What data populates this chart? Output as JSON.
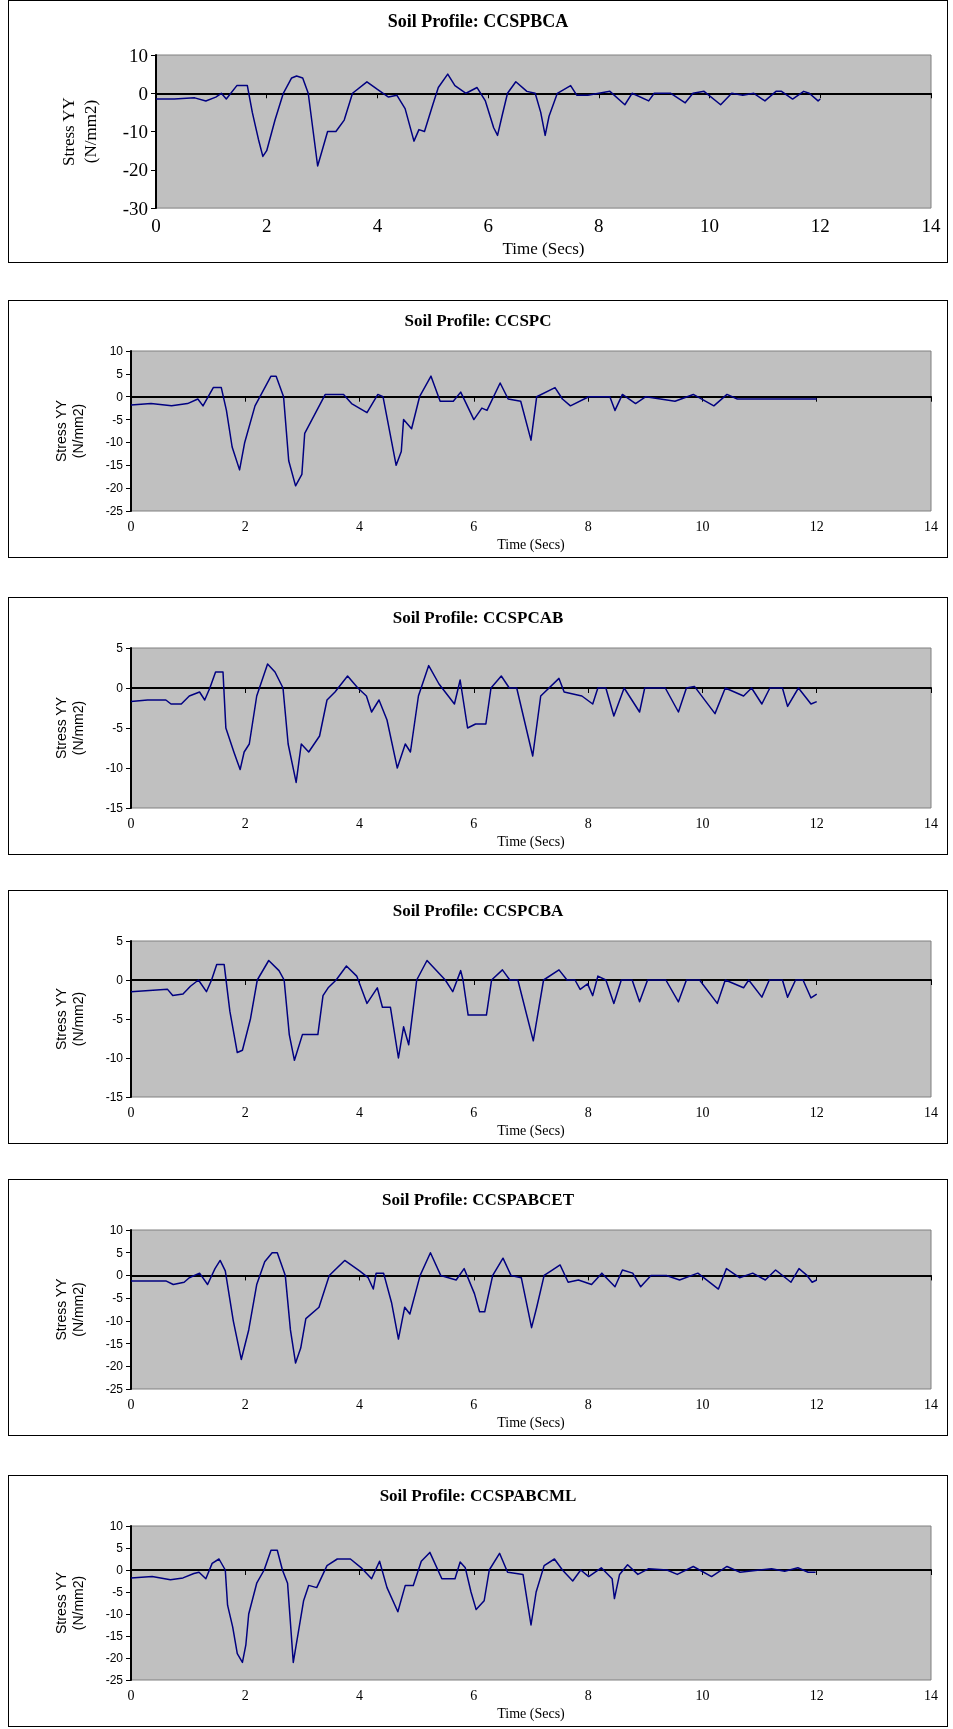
{
  "chart_data": [
    {
      "type": "line",
      "title": "Soil Profile: CCSPBCA",
      "xlabel": "Time (Secs)",
      "ylabel": "Stress YY\n(N/mm2)",
      "xlim": [
        0,
        14
      ],
      "xticks": [
        0,
        2,
        4,
        6,
        8,
        10,
        12,
        14
      ],
      "ylim": [
        -30,
        10
      ],
      "yticks": [
        -30,
        -20,
        -10,
        0,
        10
      ],
      "marker": "none",
      "x": [
        0,
        0.33,
        0.7,
        0.9,
        1.08,
        1.18,
        1.27,
        1.46,
        1.65,
        1.74,
        1.85,
        1.93,
        2.0,
        2.15,
        2.3,
        2.45,
        2.54,
        2.65,
        2.75,
        2.92,
        3.0,
        3.1,
        3.25,
        3.4,
        3.55,
        3.81,
        4.0,
        4.2,
        4.35,
        4.5,
        4.66,
        4.75,
        4.85,
        5.0,
        5.1,
        5.27,
        5.4,
        5.6,
        5.8,
        5.95,
        6.1,
        6.17,
        6.25,
        6.35,
        6.5,
        6.7,
        6.85,
        6.95,
        7.03,
        7.1,
        7.25,
        7.49,
        7.6,
        7.8,
        8.0,
        8.2,
        8.47,
        8.6,
        8.9,
        9.0,
        9.3,
        9.56,
        9.7,
        9.9,
        10.2,
        10.4,
        10.6,
        10.8,
        11.0,
        11.2,
        11.3,
        11.5,
        11.7,
        11.8,
        11.96,
        12.0
      ],
      "series": [
        {
          "color": "#000080",
          "values": [
            -1.5,
            -1.5,
            -1.2,
            -2,
            -1,
            0,
            -1.5,
            2,
            2,
            -5,
            -12,
            -16.5,
            -15,
            -7,
            0,
            4,
            4.5,
            4,
            0,
            -19,
            -15,
            -10,
            -10,
            -7,
            0,
            3,
            1,
            -1,
            -0.5,
            -4,
            -12.5,
            -9.5,
            -10,
            -3,
            1.5,
            5,
            2,
            0,
            1.5,
            -2,
            -9,
            -11,
            -6,
            0,
            3,
            0.5,
            0,
            -5,
            -11,
            -6,
            0,
            2,
            -0.5,
            -0.5,
            0,
            0.5,
            -3,
            0,
            -2,
            0,
            0,
            -2.5,
            0,
            0.5,
            -3,
            0,
            -0.5,
            0,
            -2,
            0.5,
            0.5,
            -1.5,
            0.5,
            0,
            -2,
            -1.5
          ]
        }
      ]
    },
    {
      "type": "line",
      "title": "Soil Profile: CCSPC",
      "xlabel": "Time (Secs)",
      "ylabel": "Stress YY\n(N/mm2)",
      "xlim": [
        0,
        14
      ],
      "xticks": [
        0,
        2,
        4,
        6,
        8,
        10,
        12,
        14
      ],
      "ylim": [
        -25,
        10
      ],
      "yticks": [
        -25,
        -20,
        -15,
        -10,
        -5,
        0,
        5,
        10
      ],
      "marker": "none",
      "x": [
        0,
        0.35,
        0.71,
        0.99,
        1.17,
        1.26,
        1.44,
        1.58,
        1.67,
        1.77,
        1.9,
        1.99,
        2.17,
        2.45,
        2.54,
        2.67,
        2.76,
        2.88,
        2.99,
        3.04,
        3.4,
        3.72,
        3.86,
        4.13,
        4.32,
        4.41,
        4.64,
        4.73,
        4.77,
        4.91,
        5.05,
        5.25,
        5.41,
        5.64,
        5.77,
        6.0,
        6.14,
        6.23,
        6.46,
        6.6,
        6.82,
        7.0,
        7.1,
        7.42,
        7.55,
        7.69,
        8.01,
        8.38,
        8.47,
        8.6,
        8.83,
        9.01,
        9.52,
        9.84,
        10.2,
        10.43,
        10.61,
        12.0
      ],
      "series": [
        {
          "color": "#000080",
          "values": [
            -1.8,
            -1.5,
            -2,
            -1.5,
            -0.5,
            -2,
            2,
            2,
            -3,
            -11,
            -16,
            -10,
            -2,
            4.5,
            4.5,
            0,
            -14,
            -19.5,
            -17,
            -8,
            0.5,
            0.5,
            -1.5,
            -3.5,
            0.5,
            0,
            -15,
            -12,
            -5,
            -7,
            0,
            4.5,
            -1,
            -1,
            1,
            -5,
            -2.5,
            -3,
            3,
            -0.5,
            -1,
            -9.5,
            0,
            2,
            -0.5,
            -2,
            0,
            0,
            -3,
            0.5,
            -1.5,
            0,
            -1,
            0.5,
            -2,
            0.5,
            -0.5,
            -0.5
          ]
        }
      ]
    },
    {
      "type": "line",
      "title": "Soil Profile: CCSPCAB",
      "xlabel": "Time (Secs)",
      "ylabel": "Stress YY\n(N/mm2)",
      "xlim": [
        0,
        14
      ],
      "xticks": [
        0,
        2,
        4,
        6,
        8,
        10,
        12,
        14
      ],
      "ylim": [
        -15,
        5
      ],
      "yticks": [
        -15,
        -10,
        -5,
        0,
        5
      ],
      "marker": "none",
      "x": [
        0,
        0.29,
        0.61,
        0.7,
        0.88,
        1.02,
        1.2,
        1.29,
        1.38,
        1.48,
        1.61,
        1.66,
        1.8,
        1.91,
        1.98,
        2.07,
        2.2,
        2.39,
        2.52,
        2.66,
        2.75,
        2.89,
        2.98,
        3.11,
        3.3,
        3.43,
        3.57,
        3.79,
        3.97,
        4.12,
        4.21,
        4.34,
        4.48,
        4.66,
        4.8,
        4.89,
        5.03,
        5.21,
        5.39,
        5.66,
        5.76,
        5.89,
        6.03,
        6.21,
        6.3,
        6.48,
        6.62,
        6.75,
        7.03,
        7.17,
        7.49,
        7.58,
        7.89,
        8.08,
        8.17,
        8.31,
        8.45,
        8.63,
        8.9,
        8.99,
        9.35,
        9.58,
        9.72,
        9.86,
        10.22,
        10.4,
        10.72,
        10.86,
        11.04,
        11.18,
        11.4,
        11.49,
        11.68,
        11.9,
        12.0
      ],
      "series": [
        {
          "color": "#000080",
          "values": [
            -1.7,
            -1.5,
            -1.5,
            -2,
            -2,
            -1,
            -0.5,
            -1.5,
            0,
            2,
            2,
            -5,
            -8,
            -10.2,
            -8,
            -7,
            -1,
            3,
            2,
            0,
            -7,
            -11.8,
            -7,
            -8,
            -6,
            -1.5,
            -0.5,
            1.5,
            0,
            -1,
            -3,
            -1.5,
            -4,
            -10,
            -7,
            -8,
            -1,
            2.8,
            0.5,
            -2,
            1,
            -5,
            -4.5,
            -4.5,
            0,
            1.5,
            0,
            0,
            -8.5,
            -1,
            1.2,
            -0.5,
            -1,
            -2,
            0,
            0,
            -3.5,
            0,
            -3,
            0,
            0,
            -3,
            0,
            0.2,
            -3.2,
            0,
            -1,
            0,
            -2,
            0,
            0,
            -2.3,
            0,
            -2,
            -1.7
          ]
        }
      ]
    },
    {
      "type": "line",
      "title": "Soil Profile: CCSPCBA",
      "xlabel": "Time (Secs)",
      "ylabel": "Stress YY\n(N/mm2)",
      "xlim": [
        0,
        14
      ],
      "xticks": [
        0,
        2,
        4,
        6,
        8,
        10,
        12,
        14
      ],
      "ylim": [
        -15,
        5
      ],
      "yticks": [
        -15,
        -10,
        -5,
        0,
        5
      ],
      "marker": "none",
      "x": [
        0,
        0.64,
        0.73,
        0.91,
        1.04,
        1.18,
        1.32,
        1.41,
        1.5,
        1.63,
        1.73,
        1.86,
        1.95,
        2.09,
        2.21,
        2.41,
        2.59,
        2.68,
        2.77,
        2.86,
        3.0,
        3.27,
        3.36,
        3.45,
        3.59,
        3.77,
        3.95,
        4.13,
        4.31,
        4.4,
        4.54,
        4.68,
        4.77,
        4.86,
        5.0,
        5.18,
        5.5,
        5.63,
        5.77,
        5.81,
        5.9,
        6.22,
        6.31,
        6.5,
        6.63,
        6.77,
        7.04,
        7.22,
        7.49,
        7.63,
        7.77,
        7.86,
        7.99,
        8.08,
        8.17,
        8.31,
        8.45,
        8.58,
        8.77,
        8.9,
        9.04,
        9.36,
        9.58,
        9.72,
        9.95,
        10.26,
        10.4,
        10.72,
        10.81,
        11.04,
        11.17,
        11.4,
        11.49,
        11.63,
        11.76,
        11.9,
        12.0
      ],
      "series": [
        {
          "color": "#000080",
          "values": [
            -1.5,
            -1.2,
            -2,
            -1.8,
            -0.8,
            0,
            -1.5,
            0,
            2,
            2,
            -4,
            -9.3,
            -9,
            -5,
            0,
            2.5,
            1.2,
            0,
            -7,
            -10.3,
            -7,
            -7,
            -2,
            -1,
            0,
            1.8,
            0.5,
            -3,
            -1,
            -3.5,
            -3.5,
            -10,
            -6,
            -8.3,
            0,
            2.5,
            0,
            -1.5,
            1.2,
            0,
            -4.5,
            -4.5,
            0,
            1.3,
            0,
            0,
            -7.8,
            0,
            1.3,
            0,
            0,
            -1.2,
            -0.5,
            -2,
            0.5,
            0,
            -3,
            0,
            0,
            -2.8,
            0,
            0,
            -2.8,
            0,
            0,
            -3,
            0,
            -1,
            0,
            -2.2,
            0,
            0,
            -2.2,
            0,
            0,
            -2.3,
            -1.8
          ]
        }
      ]
    },
    {
      "type": "line",
      "title": "Soil Profile: CCSPABCET",
      "xlabel": "Time (Secs)",
      "ylabel": "Stress YY\n(N/mm2)",
      "xlim": [
        0,
        14
      ],
      "xticks": [
        0,
        2,
        4,
        6,
        8,
        10,
        12,
        14
      ],
      "ylim": [
        -25,
        10
      ],
      "yticks": [
        -25,
        -20,
        -15,
        -10,
        -5,
        0,
        5,
        10
      ],
      "marker": "none",
      "x": [
        0,
        0.61,
        0.74,
        0.93,
        1.02,
        1.2,
        1.34,
        1.47,
        1.56,
        1.65,
        1.79,
        1.93,
        2.06,
        2.2,
        2.34,
        2.47,
        2.56,
        2.7,
        2.79,
        2.88,
        2.97,
        3.06,
        3.29,
        3.47,
        3.74,
        4.0,
        4.15,
        4.24,
        4.29,
        4.42,
        4.56,
        4.68,
        4.79,
        4.88,
        5.06,
        5.24,
        5.42,
        5.69,
        5.83,
        6.01,
        6.1,
        6.19,
        6.33,
        6.51,
        6.65,
        6.83,
        7.01,
        7.1,
        7.23,
        7.51,
        7.65,
        7.83,
        8.06,
        8.24,
        8.47,
        8.6,
        8.78,
        8.92,
        9.1,
        9.37,
        9.6,
        9.92,
        10.28,
        10.42,
        10.65,
        10.88,
        11.1,
        11.28,
        11.55,
        11.69,
        11.83,
        11.92,
        12.0
      ],
      "series": [
        {
          "color": "#000080",
          "values": [
            -1.2,
            -1.2,
            -2,
            -1.5,
            -0.5,
            0.5,
            -2,
            1.5,
            3.3,
            1,
            -10,
            -18.5,
            -12,
            -2,
            3,
            5,
            5,
            0,
            -12,
            -19.3,
            -16,
            -9.5,
            -7,
            0,
            3.3,
            1,
            -0.5,
            -3,
            0.5,
            0.5,
            -6,
            -14,
            -7,
            -8.5,
            0,
            5,
            0,
            -1,
            1.5,
            -4,
            -8,
            -8,
            0,
            3.8,
            0,
            -0.5,
            -11.5,
            -7,
            0,
            2.3,
            -1.5,
            -1,
            -2,
            0.5,
            -2.5,
            1.2,
            0.5,
            -2.5,
            0,
            0,
            -1,
            0.5,
            -3,
            1.5,
            -0.5,
            0.5,
            -1,
            1.2,
            -1.5,
            1.5,
            0,
            -1.5,
            -1
          ]
        }
      ]
    },
    {
      "type": "line",
      "title": "Soil Profile: CCSPABCML",
      "xlabel": "Time (Secs)",
      "ylabel": "Stress YY\n(N/mm2)",
      "xlim": [
        0,
        14
      ],
      "xticks": [
        0,
        2,
        4,
        6,
        8,
        10,
        12,
        14
      ],
      "ylim": [
        -25,
        10
      ],
      "yticks": [
        -25,
        -20,
        -15,
        -10,
        -5,
        0,
        5,
        10
      ],
      "marker": "none",
      "x": [
        0,
        0.37,
        0.69,
        0.91,
        1.1,
        1.19,
        1.31,
        1.42,
        1.54,
        1.65,
        1.69,
        1.78,
        1.86,
        1.95,
        2.01,
        2.06,
        2.2,
        2.33,
        2.45,
        2.56,
        2.65,
        2.74,
        2.79,
        2.84,
        2.93,
        3.02,
        3.11,
        3.25,
        3.43,
        3.61,
        3.84,
        4.03,
        4.21,
        4.35,
        4.48,
        4.67,
        4.8,
        4.94,
        5.08,
        5.23,
        5.44,
        5.67,
        5.76,
        5.85,
        5.95,
        6.04,
        6.18,
        6.27,
        6.45,
        6.59,
        6.86,
        7.0,
        7.09,
        7.23,
        7.41,
        7.55,
        7.73,
        7.87,
        8.01,
        8.23,
        8.42,
        8.46,
        8.55,
        8.69,
        8.87,
        9.06,
        9.38,
        9.56,
        9.84,
        10.16,
        10.43,
        10.66,
        11.21,
        11.44,
        11.67,
        11.85,
        11.98
      ],
      "series": [
        {
          "color": "#000080",
          "values": [
            -1.8,
            -1.5,
            -2.2,
            -1.8,
            -0.8,
            -0.5,
            -2,
            1.5,
            2.5,
            0,
            -8,
            -13,
            -19,
            -21,
            -17,
            -10,
            -3,
            0,
            4.5,
            4.5,
            0,
            -3,
            -12,
            -21,
            -14,
            -7,
            -3.5,
            -4,
            1,
            2.5,
            2.5,
            0.5,
            -2,
            2,
            -4,
            -9.5,
            -3.5,
            -3.5,
            2,
            4,
            -2,
            -2,
            1.8,
            0.5,
            -5,
            -9,
            -7,
            0,
            3.8,
            -0.5,
            -1,
            -12.5,
            -5,
            1,
            2.5,
            0,
            -2.5,
            0,
            -1.5,
            0.5,
            -2,
            -6.5,
            -1,
            1.2,
            -1,
            0.3,
            0,
            -1,
            0.8,
            -1.5,
            0.8,
            -0.5,
            0.3,
            -0.3,
            0.5,
            -0.5,
            -0.5
          ]
        }
      ]
    }
  ]
}
